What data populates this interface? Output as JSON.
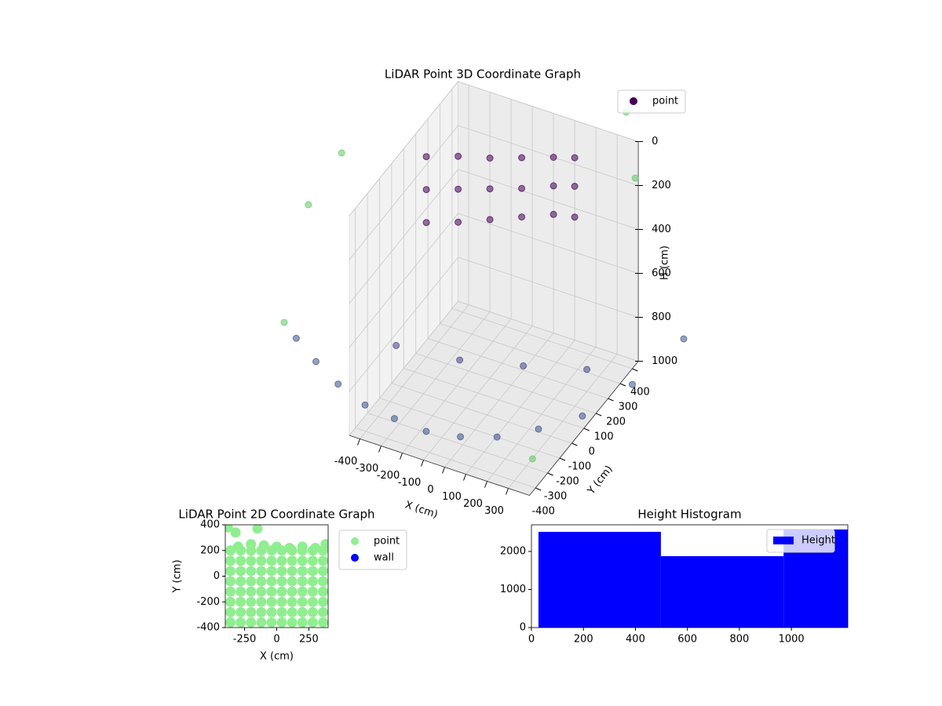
{
  "chart_data": [
    {
      "type": "scatter3d",
      "title": "LiDAR Point 3D Coordinate Graph",
      "xlabel": "X (cm)",
      "ylabel": "Y (cm)",
      "zlabel": "H (cm)",
      "xlim": [
        -450,
        400
      ],
      "ylim": [
        -450,
        450
      ],
      "zlim": [
        0,
        1000
      ],
      "zinverted": true,
      "xticks": [
        -400,
        -300,
        -200,
        -100,
        0,
        100,
        200,
        300
      ],
      "yticks": [
        -400,
        -300,
        -200,
        -100,
        0,
        100,
        200,
        300,
        400
      ],
      "zticks": [
        0,
        200,
        400,
        600,
        800,
        1000
      ],
      "grid": true,
      "legend": "upper right",
      "series": [
        {
          "name": "point",
          "color": "#440154",
          "x": [
            -900,
            -750,
            -600,
            -450,
            -300,
            -150,
            0,
            150,
            300,
            450,
            600,
            700,
            -600,
            -300,
            0,
            300,
            -600,
            -600,
            -600,
            -450,
            -450,
            -450,
            -300,
            -300,
            -300,
            -150,
            -150,
            -150,
            0,
            0,
            0,
            100,
            100,
            100,
            -900,
            -900,
            500,
            300,
            200,
            -800
          ],
          "y": [
            -100,
            -200,
            -280,
            -320,
            -340,
            -340,
            -320,
            -280,
            -200,
            -100,
            50,
            300,
            200,
            200,
            200,
            200,
            450,
            450,
            450,
            450,
            450,
            450,
            450,
            450,
            450,
            450,
            450,
            450,
            450,
            450,
            450,
            450,
            450,
            450,
            0,
            -200,
            -600,
            600,
            700,
            100
          ],
          "z": [
            940,
            930,
            930,
            950,
            950,
            960,
            950,
            930,
            900,
            860,
            770,
            700,
            1080,
            1050,
            980,
            900,
            390,
            540,
            690,
            340,
            490,
            640,
            300,
            440,
            580,
            250,
            390,
            520,
            200,
            330,
            460,
            170,
            300,
            440,
            400,
            800,
            700,
            300,
            100,
            200
          ],
          "colors": [
            "#3b528b",
            "#3b528b",
            "#3b528b",
            "#3b528b",
            "#3b528b",
            "#3b528b",
            "#3b528b",
            "#3b528b",
            "#3b528b",
            "#3b528b",
            "#3b528b",
            "#3b528b",
            "#414487",
            "#414487",
            "#414487",
            "#414487",
            "#440154",
            "#440154",
            "#440154",
            "#440154",
            "#440154",
            "#440154",
            "#440154",
            "#440154",
            "#440154",
            "#440154",
            "#440154",
            "#440154",
            "#440154",
            "#440154",
            "#440154",
            "#440154",
            "#440154",
            "#440154",
            "#5ec962",
            "#5ec962",
            "#5ec962",
            "#5ec962",
            "#5ec962",
            "#5ec962"
          ]
        }
      ]
    },
    {
      "type": "scatter",
      "title": "LiDAR Point 2D Coordinate Graph",
      "xlabel": "X (cm)",
      "ylabel": "Y (cm)",
      "xlim": [
        -400,
        400
      ],
      "ylim": [
        -400,
        400
      ],
      "xticks": [
        -250,
        0,
        250
      ],
      "yticks": [
        -400,
        -200,
        0,
        200,
        400
      ],
      "legend": "outside right",
      "series": [
        {
          "name": "point",
          "color": "#90ee90",
          "x": [
            -360,
            -280,
            -200,
            -120,
            -40,
            40,
            120,
            200,
            280,
            360,
            -360,
            -280,
            -200,
            -120,
            -40,
            40,
            120,
            200,
            280,
            360,
            -360,
            -280,
            -200,
            -120,
            -40,
            40,
            120,
            200,
            280,
            360,
            -360,
            -280,
            -200,
            -120,
            -40,
            40,
            120,
            200,
            280,
            360,
            -360,
            -280,
            -200,
            -120,
            -40,
            40,
            120,
            200,
            280,
            360,
            -360,
            -280,
            -200,
            -120,
            -40,
            40,
            120,
            200,
            280,
            360,
            -360,
            -280,
            -200,
            -120,
            -40,
            40,
            120,
            200,
            280,
            360,
            -360,
            -280,
            -200,
            -120,
            -40,
            40,
            120,
            200,
            280,
            360,
            -380,
            -320,
            -300,
            -200,
            -100,
            0,
            100,
            200,
            300,
            380,
            -150
          ],
          "y": [
            -360,
            -360,
            -360,
            -360,
            -360,
            -360,
            -360,
            -360,
            -360,
            -360,
            -280,
            -280,
            -280,
            -280,
            -280,
            -280,
            -280,
            -280,
            -280,
            -280,
            -200,
            -200,
            -200,
            -200,
            -200,
            -200,
            -200,
            -200,
            -200,
            -200,
            -120,
            -120,
            -120,
            -120,
            -120,
            -120,
            -120,
            -120,
            -120,
            -120,
            -40,
            -40,
            -40,
            -40,
            -40,
            -40,
            -40,
            -40,
            -40,
            -40,
            40,
            40,
            40,
            40,
            40,
            40,
            40,
            40,
            40,
            40,
            120,
            120,
            120,
            120,
            120,
            120,
            120,
            120,
            120,
            120,
            200,
            200,
            200,
            200,
            200,
            200,
            200,
            200,
            200,
            200,
            380,
            340,
            230,
            250,
            240,
            230,
            220,
            230,
            220,
            250,
            370
          ]
        },
        {
          "name": "wall",
          "color": "#0000ff",
          "x": [],
          "y": []
        }
      ]
    },
    {
      "type": "histogram",
      "title": "Height Histogram",
      "name": "Height",
      "color": "#0000ff",
      "bins": [
        27,
        498,
        970,
        1217
      ],
      "counts": [
        2515,
        1876,
        2577
      ],
      "xlim": [
        0,
        1217
      ],
      "ylim": [
        0,
        2700
      ],
      "xticks": [
        0,
        200,
        400,
        600,
        800,
        1000
      ],
      "yticks": [
        0,
        1000,
        2000
      ],
      "legend": "upper right"
    }
  ]
}
